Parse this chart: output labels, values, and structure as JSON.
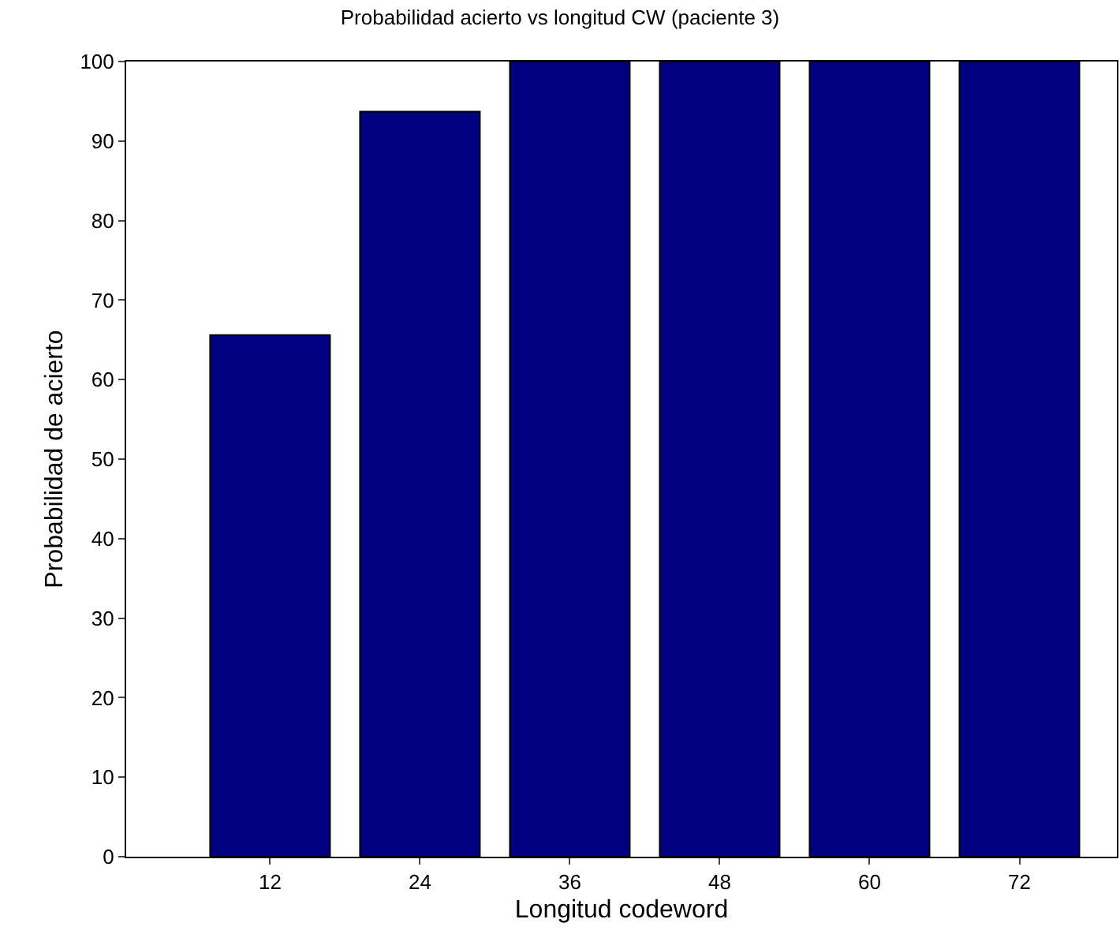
{
  "chart_data": {
    "type": "bar",
    "title": "Probabilidad acierto vs longitud CW (paciente 3)",
    "xlabel": "Longitud codeword",
    "ylabel": "Probabilidad de acierto",
    "categories": [
      "12",
      "24",
      "36",
      "48",
      "60",
      "72"
    ],
    "values": [
      65.6,
      93.7,
      100,
      100,
      100,
      100
    ],
    "color": "#000080",
    "ylim": [
      0,
      100
    ],
    "yticks": [
      0,
      10,
      20,
      30,
      40,
      50,
      60,
      70,
      80,
      90,
      100
    ]
  }
}
